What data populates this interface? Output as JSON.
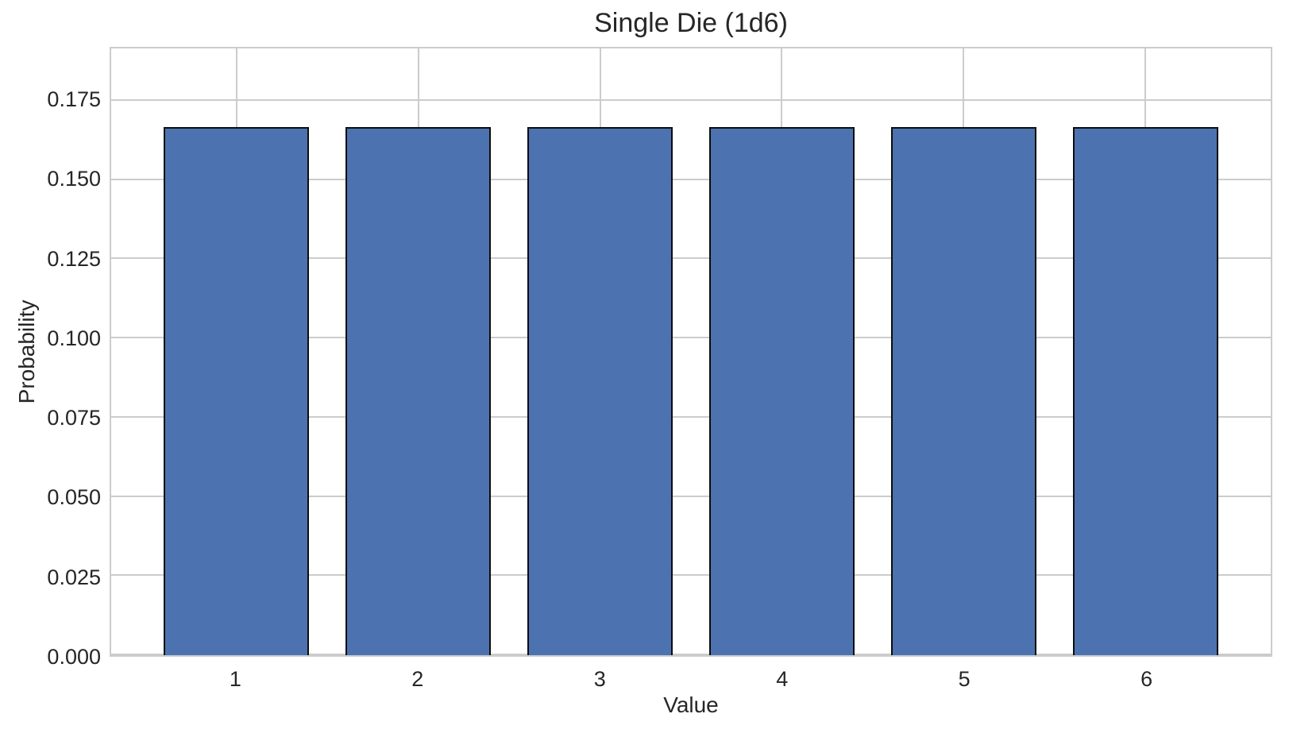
{
  "chart_data": {
    "type": "bar",
    "title": "Single Die (1d6)",
    "xlabel": "Value",
    "ylabel": "Probability",
    "categories": [
      "1",
      "2",
      "3",
      "4",
      "5",
      "6"
    ],
    "x": [
      1,
      2,
      3,
      4,
      5,
      6
    ],
    "values": [
      0.1667,
      0.1667,
      0.1667,
      0.1667,
      0.1667,
      0.1667
    ],
    "ytick_labels": [
      "0.000",
      "0.025",
      "0.050",
      "0.075",
      "0.100",
      "0.125",
      "0.150",
      "0.175"
    ],
    "ytick_values": [
      0.0,
      0.025,
      0.05,
      0.075,
      0.1,
      0.125,
      0.15,
      0.175
    ],
    "ylim": [
      0,
      0.1915
    ],
    "xlim": [
      0.31,
      6.69
    ],
    "bar_width": 0.8,
    "grid": true,
    "legend": null,
    "colors": {
      "bar_fill": "#4C72B0",
      "bar_edge": "#0d0d0d",
      "grid": "#cccccc",
      "spine": "#cccccc",
      "text": "#262626",
      "background": "#ffffff"
    }
  }
}
